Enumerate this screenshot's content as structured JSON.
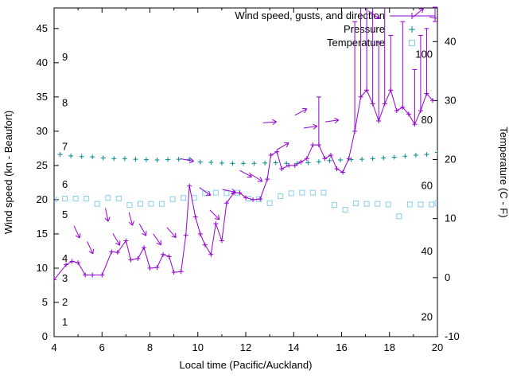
{
  "figure": {
    "background": "#ffffff",
    "text_color": "#000000"
  },
  "legend": {
    "entries": [
      {
        "label": "Wind speed, gusts, and direction",
        "series": "wind",
        "sample": "line-plus-errorbar"
      },
      {
        "label": "Pressure",
        "series": "pressure",
        "sample": "plus"
      },
      {
        "label": "Temperature",
        "series": "temperature",
        "sample": "square"
      }
    ]
  },
  "chart_data": {
    "type": "line",
    "title": "",
    "x": {
      "label": "Local time (Pacific/Auckland)",
      "range": [
        4,
        20
      ],
      "ticks": [
        4,
        6,
        8,
        10,
        12,
        14,
        16,
        18,
        20
      ],
      "minor_ticks": [
        5,
        7,
        9,
        11,
        13,
        15,
        17,
        19
      ]
    },
    "y_left": {
      "label": "Wind speed (kn - Beaufort)",
      "range": [
        0,
        48
      ],
      "ticks": [
        0,
        5,
        10,
        15,
        20,
        25,
        30,
        35,
        40,
        45
      ],
      "beaufort_inner_labels": [
        {
          "label": "1",
          "kn": 2.1
        },
        {
          "label": "2",
          "kn": 5.0
        },
        {
          "label": "3",
          "kn": 8.5
        },
        {
          "label": "4",
          "kn": 11.4
        },
        {
          "label": "5",
          "kn": 17.8
        },
        {
          "label": "6",
          "kn": 22.2
        },
        {
          "label": "7",
          "kn": 27.7
        },
        {
          "label": "8",
          "kn": 34.1
        },
        {
          "label": "9",
          "kn": 40.8
        }
      ]
    },
    "y_right": {
      "label": "Temperature (C - F)",
      "range": [
        -10,
        45.7
      ],
      "ticks": [
        -10,
        0,
        10,
        20,
        30,
        40
      ],
      "fahrenheit_inner_labels": [
        20,
        40,
        60,
        80,
        100
      ]
    },
    "series": {
      "wind": {
        "name": "Wind speed, gusts, and direction",
        "color": "#9400D3",
        "axis": "left",
        "marker": "plus",
        "line": true,
        "points": [
          [
            4.0,
            8.3
          ],
          [
            4.5,
            10.5
          ],
          [
            4.75,
            11.0
          ],
          [
            5.0,
            10.8
          ],
          [
            5.3,
            9.0
          ],
          [
            5.6,
            9.0
          ],
          [
            6.0,
            9.0
          ],
          [
            6.4,
            12.4
          ],
          [
            6.65,
            12.3
          ],
          [
            7.0,
            14.0
          ],
          [
            7.2,
            11.2
          ],
          [
            7.5,
            11.4
          ],
          [
            7.75,
            13.0
          ],
          [
            8.0,
            10.0
          ],
          [
            8.3,
            10.1
          ],
          [
            8.55,
            12.0
          ],
          [
            8.8,
            11.7
          ],
          [
            9.0,
            9.4
          ],
          [
            9.3,
            9.5
          ],
          [
            9.5,
            14.8
          ],
          [
            9.65,
            22.0
          ],
          [
            9.9,
            17.5
          ],
          [
            10.1,
            15.0
          ],
          [
            10.3,
            13.4
          ],
          [
            10.55,
            12.0
          ],
          [
            10.75,
            16.5
          ],
          [
            11.0,
            14.0
          ],
          [
            11.2,
            19.5
          ],
          [
            11.5,
            21.0
          ],
          [
            11.75,
            21.0
          ],
          [
            12.0,
            20.3
          ],
          [
            12.3,
            20.0
          ],
          [
            12.6,
            20.1
          ],
          [
            12.9,
            23.0
          ],
          [
            13.05,
            26.5
          ],
          [
            13.3,
            27.0
          ],
          [
            13.5,
            24.5
          ],
          [
            13.8,
            25.0
          ],
          [
            14.05,
            25.0
          ],
          [
            14.3,
            25.5
          ],
          [
            14.55,
            26.0
          ],
          [
            14.8,
            28.0
          ],
          [
            15.05,
            28.0
          ],
          [
            15.3,
            26.0
          ],
          [
            15.55,
            26.5
          ],
          [
            15.8,
            24.5
          ],
          [
            16.05,
            24.0
          ],
          [
            16.3,
            26.0
          ],
          [
            16.55,
            30.0
          ],
          [
            16.8,
            35.0
          ],
          [
            17.05,
            36.0
          ],
          [
            17.3,
            34.0
          ],
          [
            17.55,
            31.5
          ],
          [
            17.8,
            34.0
          ],
          [
            18.05,
            36.0
          ],
          [
            18.3,
            33.0
          ],
          [
            18.55,
            33.5
          ],
          [
            18.8,
            32.5
          ],
          [
            19.05,
            31.0
          ],
          [
            19.3,
            33.0
          ],
          [
            19.55,
            35.5
          ],
          [
            19.8,
            34.5
          ]
        ]
      },
      "pressure": {
        "name": "Pressure",
        "color": "#008B8B",
        "axis": "left-unscaled",
        "marker": "plus",
        "line": false,
        "points": [
          [
            4.25,
            26.6
          ],
          [
            4.7,
            26.4
          ],
          [
            5.15,
            26.3
          ],
          [
            5.6,
            26.25
          ],
          [
            6.05,
            26.1
          ],
          [
            6.5,
            26.0
          ],
          [
            6.95,
            26.0
          ],
          [
            7.4,
            25.9
          ],
          [
            7.85,
            25.85
          ],
          [
            8.3,
            25.8
          ],
          [
            8.75,
            25.85
          ],
          [
            9.2,
            25.9
          ],
          [
            9.65,
            25.9
          ],
          [
            10.1,
            25.5
          ],
          [
            10.55,
            25.45
          ],
          [
            11.0,
            25.35
          ],
          [
            11.45,
            25.3
          ],
          [
            11.9,
            25.3
          ],
          [
            12.35,
            25.3
          ],
          [
            12.8,
            25.35
          ],
          [
            13.25,
            25.4
          ],
          [
            13.7,
            25.3
          ],
          [
            14.15,
            25.3
          ],
          [
            14.6,
            25.4
          ],
          [
            15.05,
            25.55
          ],
          [
            15.5,
            25.7
          ],
          [
            15.95,
            25.8
          ],
          [
            16.4,
            25.85
          ],
          [
            16.85,
            25.9
          ],
          [
            17.3,
            26.0
          ],
          [
            17.75,
            26.1
          ],
          [
            18.2,
            26.2
          ],
          [
            18.65,
            26.35
          ],
          [
            19.1,
            26.5
          ],
          [
            19.55,
            26.6
          ],
          [
            20.0,
            26.9
          ]
        ]
      },
      "temperature": {
        "name": "Temperature",
        "color": "#87CEEB",
        "axis": "right",
        "marker": "open-square",
        "line": false,
        "points": [
          [
            4.0,
            13.2
          ],
          [
            4.45,
            13.4
          ],
          [
            4.9,
            13.4
          ],
          [
            5.35,
            13.4
          ],
          [
            5.8,
            12.5
          ],
          [
            6.25,
            13.5
          ],
          [
            6.7,
            13.4
          ],
          [
            7.15,
            12.3
          ],
          [
            7.6,
            12.5
          ],
          [
            8.05,
            12.5
          ],
          [
            8.5,
            12.5
          ],
          [
            8.95,
            13.3
          ],
          [
            9.4,
            13.5
          ],
          [
            9.85,
            13.5
          ],
          [
            10.3,
            14.3
          ],
          [
            10.75,
            14.4
          ],
          [
            11.2,
            14.3
          ],
          [
            11.65,
            14.4
          ],
          [
            12.1,
            13.4
          ],
          [
            12.55,
            13.3
          ],
          [
            13.0,
            12.6
          ],
          [
            13.45,
            13.8
          ],
          [
            13.9,
            14.3
          ],
          [
            14.35,
            14.4
          ],
          [
            14.8,
            14.4
          ],
          [
            15.25,
            14.4
          ],
          [
            15.7,
            12.3
          ],
          [
            16.15,
            11.5
          ],
          [
            16.6,
            12.6
          ],
          [
            17.05,
            12.5
          ],
          [
            17.5,
            12.5
          ],
          [
            17.95,
            12.4
          ],
          [
            18.4,
            10.4
          ],
          [
            18.85,
            12.4
          ],
          [
            19.3,
            12.4
          ],
          [
            19.75,
            12.4
          ],
          [
            20.0,
            12.6
          ]
        ]
      }
    },
    "wind_gusts": {
      "color": "#9400D3",
      "bars": [
        [
          15.05,
          28,
          35
        ],
        [
          16.55,
          30,
          46
        ],
        [
          16.8,
          35,
          48
        ],
        [
          17.05,
          36,
          48
        ],
        [
          17.3,
          34,
          48
        ],
        [
          17.55,
          31.5,
          43
        ],
        [
          17.8,
          34,
          48
        ],
        [
          18.05,
          36,
          44
        ],
        [
          18.55,
          33.5,
          46
        ],
        [
          19.05,
          31,
          39
        ],
        [
          19.3,
          33,
          44
        ],
        [
          19.55,
          35.5,
          45
        ]
      ]
    },
    "wind_arrows": {
      "color": "#9400D3",
      "items": [
        [
          4.95,
          15.3,
          65
        ],
        [
          5.5,
          13.0,
          65
        ],
        [
          6.2,
          17.8,
          78
        ],
        [
          6.6,
          14.2,
          60
        ],
        [
          7.2,
          17.2,
          75
        ],
        [
          7.7,
          15.6,
          60
        ],
        [
          8.3,
          14.2,
          55
        ],
        [
          8.9,
          15.2,
          48
        ],
        [
          9.55,
          25.8,
          10
        ],
        [
          10.3,
          21.2,
          35
        ],
        [
          10.7,
          17.8,
          45
        ],
        [
          11.3,
          21.3,
          12
        ],
        [
          12.0,
          23.8,
          28
        ],
        [
          12.45,
          23.2,
          32
        ],
        [
          13.0,
          31.3,
          -5
        ],
        [
          13.55,
          27.8,
          -30
        ],
        [
          14.3,
          32.8,
          -28
        ],
        [
          14.7,
          30.6,
          -8
        ],
        [
          15.6,
          31.5,
          -8
        ],
        [
          17.35,
          47.0,
          35
        ],
        [
          19.2,
          47.3,
          -40
        ],
        [
          19.95,
          46.5,
          10
        ]
      ]
    }
  }
}
